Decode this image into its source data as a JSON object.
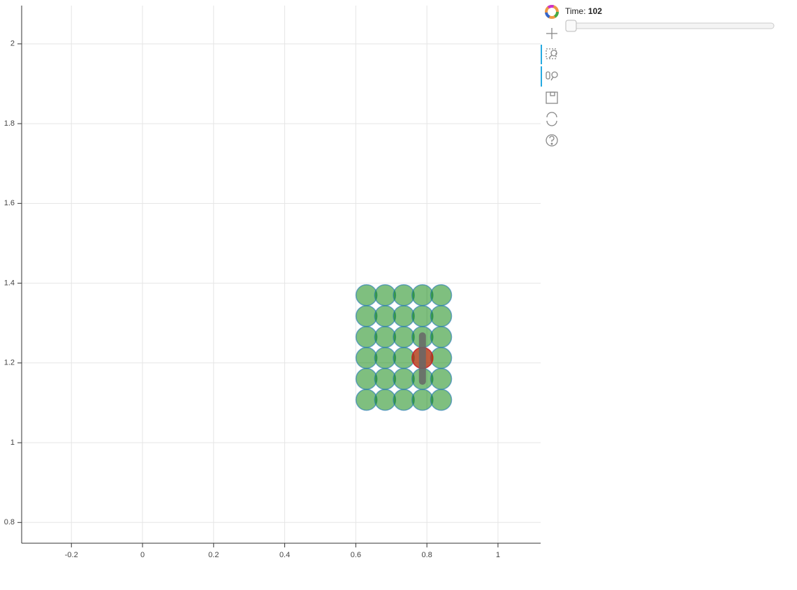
{
  "chart_data": {
    "type": "scatter",
    "xlim": [
      -0.34,
      1.12
    ],
    "ylim": [
      0.748,
      2.096
    ],
    "xticks": [
      -0.2,
      0,
      0.2,
      0.4,
      0.6,
      0.8,
      1
    ],
    "yticks": [
      0.8,
      1,
      1.2,
      1.4,
      1.6,
      1.8,
      2
    ],
    "grid": true,
    "series": [
      {
        "color": "#008000",
        "edge": "#1f77b4",
        "x": [
          0.63,
          0.6825,
          0.735,
          0.7875,
          0.84,
          0.63,
          0.6825,
          0.735,
          0.7875,
          0.84,
          0.63,
          0.6825,
          0.735,
          0.7875,
          0.84,
          0.63,
          0.6825,
          0.735,
          0.7875,
          0.84,
          0.63,
          0.6825,
          0.735,
          0.7875,
          0.84,
          0.63,
          0.6825,
          0.735,
          0.7875,
          0.84
        ],
        "y": [
          1.37,
          1.37,
          1.37,
          1.37,
          1.37,
          1.3175,
          1.3175,
          1.3175,
          1.3175,
          1.3175,
          1.265,
          1.265,
          1.265,
          1.265,
          1.265,
          1.2125,
          1.2125,
          1.2125,
          1.2125,
          1.2125,
          1.16,
          1.16,
          1.16,
          1.16,
          1.16,
          1.1075,
          1.1075,
          1.1075,
          1.1075,
          1.1075
        ]
      },
      {
        "color": "#ff0000",
        "edge": "#ff0000",
        "x": [
          0.7875
        ],
        "y": [
          1.2125
        ]
      }
    ],
    "segments": [
      {
        "color": "#666666",
        "x": [
          0.7875,
          0.7875
        ],
        "y": [
          1.268,
          1.154
        ]
      }
    ]
  },
  "slider": {
    "label": "Time:",
    "value": 102
  }
}
